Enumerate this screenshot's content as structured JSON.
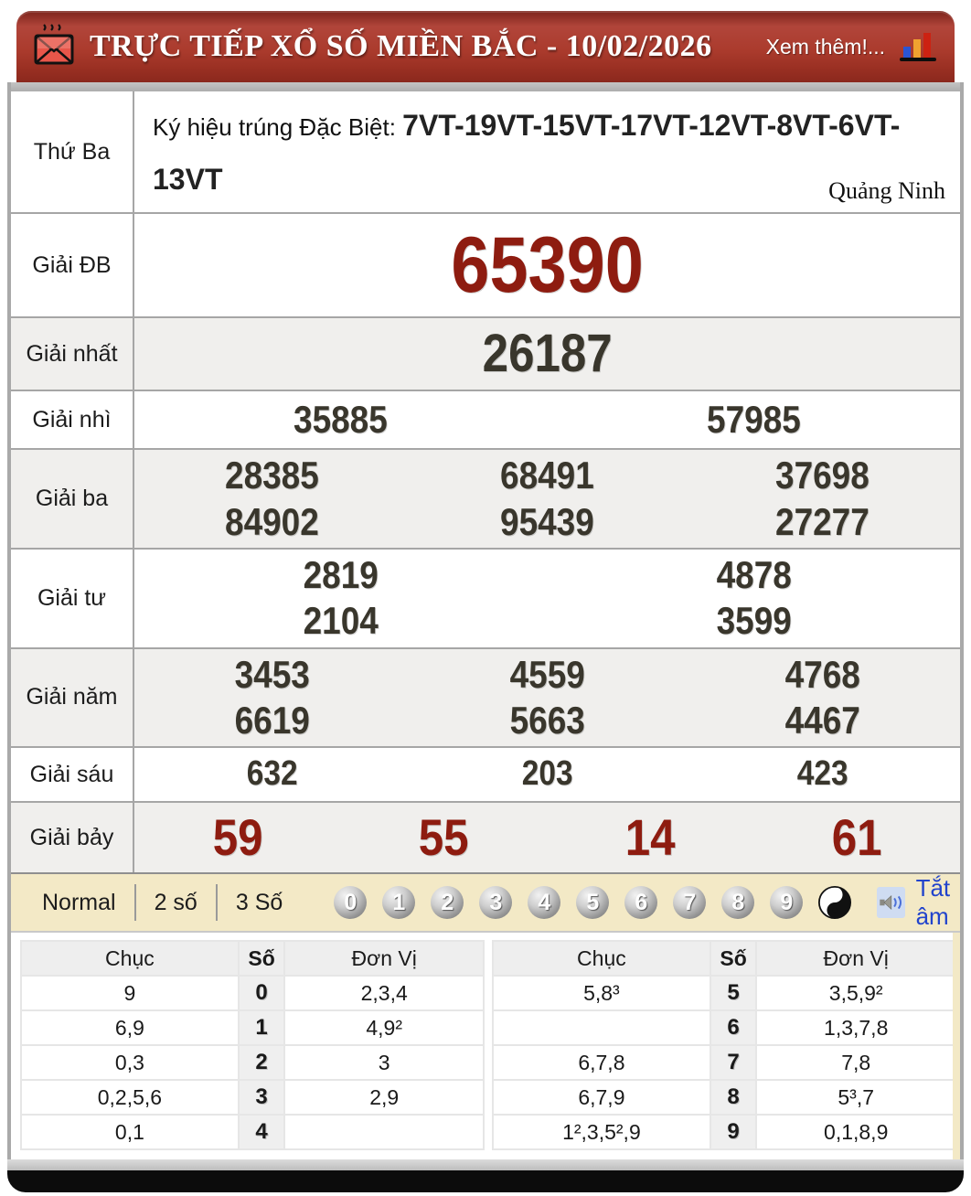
{
  "header": {
    "title": "TRỰC TIẾP XỔ SỐ MIỀN BẮC - 10/02/2026",
    "more_label": "Xem thêm!...",
    "icons": {
      "left": "hot-envelope-icon",
      "right": "bar-chart-icon"
    }
  },
  "results": {
    "day_label": "Thứ Ba",
    "special_sign_label": "Ký hiệu trúng Đặc Biệt: ",
    "special_sign_value": "7VT-19VT-15VT-17VT-12VT-8VT-6VT-13VT",
    "province": "Quảng Ninh",
    "rows": [
      {
        "kind": "db",
        "label": "Giải ĐB",
        "lines": [
          [
            "65390"
          ]
        ]
      },
      {
        "kind": "nhat",
        "label": "Giải nhất",
        "lines": [
          [
            "26187"
          ]
        ]
      },
      {
        "kind": "nhi",
        "label": "Giải nhì",
        "lines": [
          [
            "35885",
            "57985"
          ]
        ]
      },
      {
        "kind": "ba",
        "label": "Giải ba",
        "lines": [
          [
            "28385",
            "68491",
            "37698"
          ],
          [
            "84902",
            "95439",
            "27277"
          ]
        ]
      },
      {
        "kind": "tu",
        "label": "Giải tư",
        "lines": [
          [
            "2819",
            "4878"
          ],
          [
            "2104",
            "3599"
          ]
        ]
      },
      {
        "kind": "nam",
        "label": "Giải năm",
        "lines": [
          [
            "3453",
            "4559",
            "4768"
          ],
          [
            "6619",
            "5663",
            "4467"
          ]
        ]
      },
      {
        "kind": "sau",
        "label": "Giải sáu",
        "lines": [
          [
            "632",
            "203",
            "423"
          ]
        ]
      },
      {
        "kind": "bay",
        "label": "Giải bảy",
        "lines": [
          [
            "59",
            "55",
            "14",
            "61"
          ]
        ]
      }
    ]
  },
  "controls": {
    "modes": [
      "Normal",
      "2 số",
      "3 Số"
    ],
    "balls": [
      "0",
      "1",
      "2",
      "3",
      "4",
      "5",
      "6",
      "7",
      "8",
      "9"
    ],
    "extra_ball": "yin-yang-icon",
    "speaker": "speaker-icon",
    "mute_label": "Tắt âm"
  },
  "tail_tables": {
    "headers": [
      "Chục",
      "Số",
      "Đơn Vị"
    ],
    "left_rows": [
      [
        "9",
        "0",
        "2,3,4"
      ],
      [
        "6,9",
        "1",
        "4,9²"
      ],
      [
        "0,3",
        "2",
        "3"
      ],
      [
        "0,2,5,6",
        "3",
        "2,9"
      ],
      [
        "0,1",
        "4",
        ""
      ]
    ],
    "right_rows": [
      [
        "5,8³",
        "5",
        "3,5,9²"
      ],
      [
        "",
        "6",
        "1,3,7,8"
      ],
      [
        "6,7,8",
        "7",
        "7,8"
      ],
      [
        "6,7,9",
        "8",
        "5³,7"
      ],
      [
        "1²,3,5²,9",
        "9",
        "0,1,8,9"
      ]
    ]
  },
  "colors": {
    "header_red": "#a83528",
    "prize_red": "#8e1c10",
    "number_dark": "#39362c",
    "control_beige": "#f3e9c6",
    "mute_blue": "#2244cc"
  }
}
